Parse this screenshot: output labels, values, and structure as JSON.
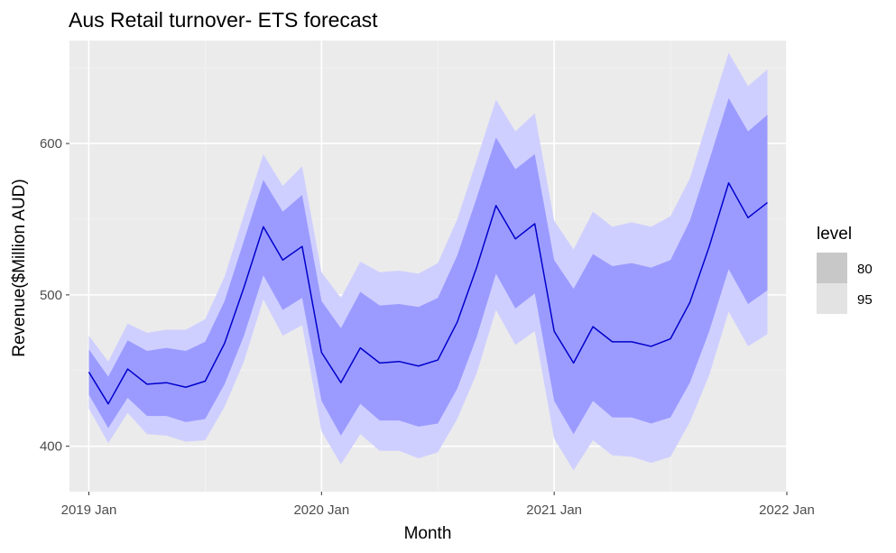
{
  "chart_data": {
    "type": "line",
    "title": "Aus Retail turnover- ETS forecast",
    "xlabel": "Month",
    "ylabel": "Revenue($Million AUD)",
    "x_tick_labels": [
      "2019 Jan",
      "2020 Jan",
      "2021 Jan",
      "2022 Jan"
    ],
    "y_ticks": [
      400,
      500,
      600
    ],
    "xlim": [
      "2018-12",
      "2022-01"
    ],
    "ylim": [
      370,
      668
    ],
    "grid": true,
    "legend": {
      "title": "level",
      "position": "right",
      "entries": [
        {
          "label": "80",
          "color": "#c8c8c8"
        },
        {
          "label": "95",
          "color": "#e3e3e3"
        }
      ]
    },
    "colors": {
      "panel": "#ebebeb",
      "grid_major": "#ffffff",
      "grid_minor": "#f4f4f4",
      "band_95": "#cfcfff",
      "band_80": "#9b9bff",
      "line": "#0000cc"
    },
    "months": [
      "2019-01",
      "2019-02",
      "2019-03",
      "2019-04",
      "2019-05",
      "2019-06",
      "2019-07",
      "2019-08",
      "2019-09",
      "2019-10",
      "2019-11",
      "2019-12",
      "2020-01",
      "2020-02",
      "2020-03",
      "2020-04",
      "2020-05",
      "2020-06",
      "2020-07",
      "2020-08",
      "2020-09",
      "2020-10",
      "2020-11",
      "2020-12",
      "2021-01",
      "2021-02",
      "2021-03",
      "2021-04",
      "2021-05",
      "2021-06",
      "2021-07",
      "2021-08",
      "2021-09",
      "2021-10",
      "2021-11",
      "2021-12"
    ],
    "series": [
      {
        "type": "line",
        "values": [
          449,
          428,
          451,
          441,
          442,
          439,
          443,
          468,
          505,
          545,
          523,
          532,
          462,
          442,
          465,
          455,
          456,
          453,
          457,
          482,
          518,
          559,
          537,
          547,
          476,
          455,
          479,
          469,
          469,
          466,
          471,
          495,
          532,
          574,
          551,
          561
        ]
      }
    ],
    "intervals": [
      {
        "level": 80,
        "lower": [
          434,
          412,
          432,
          420,
          420,
          416,
          418,
          441,
          473,
          513,
          490,
          498,
          430,
          407,
          428,
          417,
          417,
          413,
          415,
          438,
          472,
          514,
          491,
          501,
          430,
          408,
          430,
          419,
          419,
          415,
          419,
          442,
          476,
          517,
          494,
          503
        ],
        "upper": [
          464,
          446,
          470,
          463,
          465,
          463,
          469,
          496,
          536,
          576,
          555,
          566,
          496,
          478,
          502,
          493,
          494,
          492,
          498,
          526,
          564,
          604,
          583,
          593,
          523,
          504,
          527,
          519,
          521,
          518,
          523,
          549,
          589,
          630,
          608,
          619
        ]
      },
      {
        "level": 95,
        "lower": [
          425,
          402,
          422,
          408,
          407,
          403,
          404,
          426,
          456,
          497,
          473,
          480,
          410,
          388,
          408,
          397,
          397,
          392,
          396,
          418,
          448,
          490,
          467,
          476,
          405,
          384,
          404,
          394,
          393,
          389,
          393,
          416,
          447,
          489,
          466,
          474
        ],
        "upper": [
          473,
          456,
          481,
          475,
          477,
          477,
          484,
          512,
          553,
          593,
          572,
          585,
          515,
          498,
          522,
          515,
          516,
          514,
          521,
          550,
          589,
          629,
          608,
          620,
          549,
          530,
          555,
          545,
          548,
          545,
          552,
          577,
          619,
          660,
          638,
          649
        ]
      }
    ]
  }
}
